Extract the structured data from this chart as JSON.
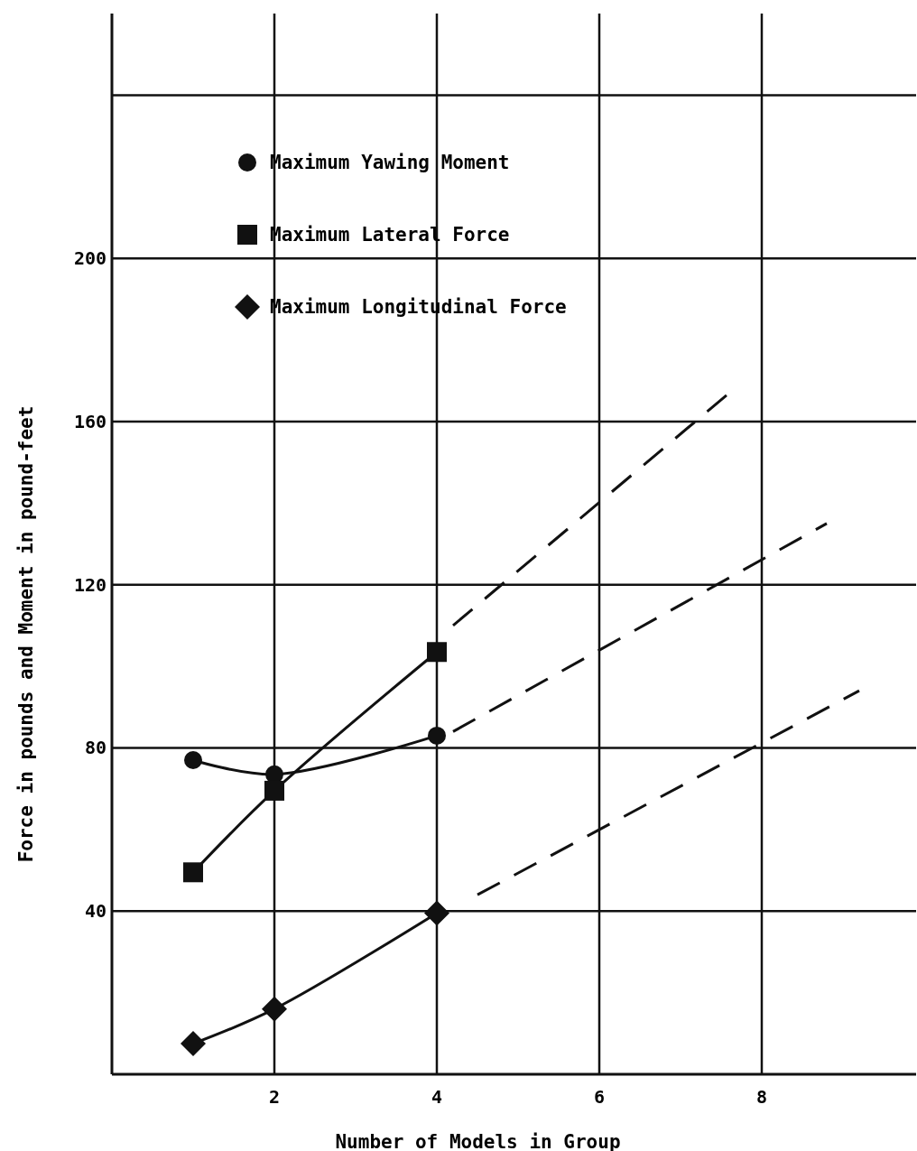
{
  "chart_data": {
    "type": "line",
    "xlabel": "Number of Models in Group",
    "ylabel": "Force in pounds and Moment in pound-feet",
    "xlim": [
      0,
      9.9
    ],
    "xticks": [
      2,
      4,
      6,
      8
    ],
    "ylim": [
      0,
      260
    ],
    "yticks": [
      40,
      80,
      120,
      160,
      200,
      {
        "value": 240,
        "label": null
      }
    ],
    "grid": true,
    "legend": "top left",
    "line_style": "solid",
    "series": [
      {
        "name": "Maximum Yawing Moment",
        "color": "#111111",
        "marker": "circle",
        "x": [
          1,
          2,
          4
        ],
        "values": [
          77,
          73.5,
          83
        ]
      },
      {
        "name": "Maximum Lateral Force",
        "color": "#111111",
        "marker": "square",
        "x": [
          1,
          2,
          4
        ],
        "values": [
          49.5,
          69.5,
          103.5
        ]
      },
      {
        "name": "Maximum Longitudinal Force",
        "color": "#111111",
        "marker": "diamond",
        "x": [
          1,
          2,
          4
        ],
        "values": [
          7.5,
          16,
          39.5
        ]
      },
      {
        "color": "#111111",
        "marker": "none",
        "line_style": "dashed",
        "x": [
          4.2,
          7.6
        ],
        "values": [
          110,
          167
        ]
      },
      {
        "color": "#111111",
        "marker": "none",
        "line_style": "dashed",
        "x": [
          4.2,
          8.8
        ],
        "values": [
          84,
          135
        ]
      },
      {
        "color": "#111111",
        "marker": "none",
        "line_style": "dashed",
        "x": [
          4.5,
          9.2
        ],
        "values": [
          44,
          94
        ]
      }
    ]
  }
}
